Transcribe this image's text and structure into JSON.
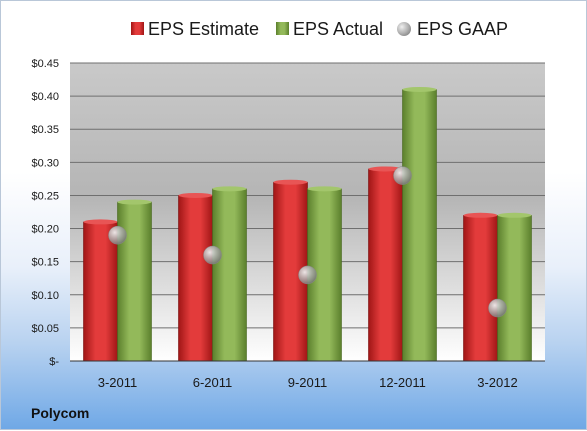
{
  "company": "Polycom",
  "colors": {
    "estimate": "#d42a2a",
    "actual": "#7fa547",
    "gaap": "#b8b8b8"
  },
  "chart_data": {
    "type": "bar",
    "categories": [
      "3-2011",
      "6-2011",
      "9-2011",
      "12-2011",
      "3-2012"
    ],
    "series": [
      {
        "name": "EPS Estimate",
        "values": [
          0.21,
          0.25,
          0.27,
          0.29,
          0.22
        ]
      },
      {
        "name": "EPS Actual",
        "values": [
          0.24,
          0.26,
          0.26,
          0.41,
          0.22
        ]
      }
    ],
    "scatter_series": {
      "name": "EPS GAAP",
      "values": [
        0.19,
        0.16,
        0.13,
        0.28,
        0.08
      ]
    },
    "ylim": [
      0,
      0.45
    ],
    "yticks": [
      0,
      0.05,
      0.1,
      0.15,
      0.2,
      0.25,
      0.3,
      0.35,
      0.4,
      0.45
    ],
    "ytick_labels": [
      "$-",
      "$0.05",
      "$0.10",
      "$0.15",
      "$0.20",
      "$0.25",
      "$0.30",
      "$0.35",
      "$0.40",
      "$0.45"
    ],
    "grid": true,
    "legend": "top"
  }
}
